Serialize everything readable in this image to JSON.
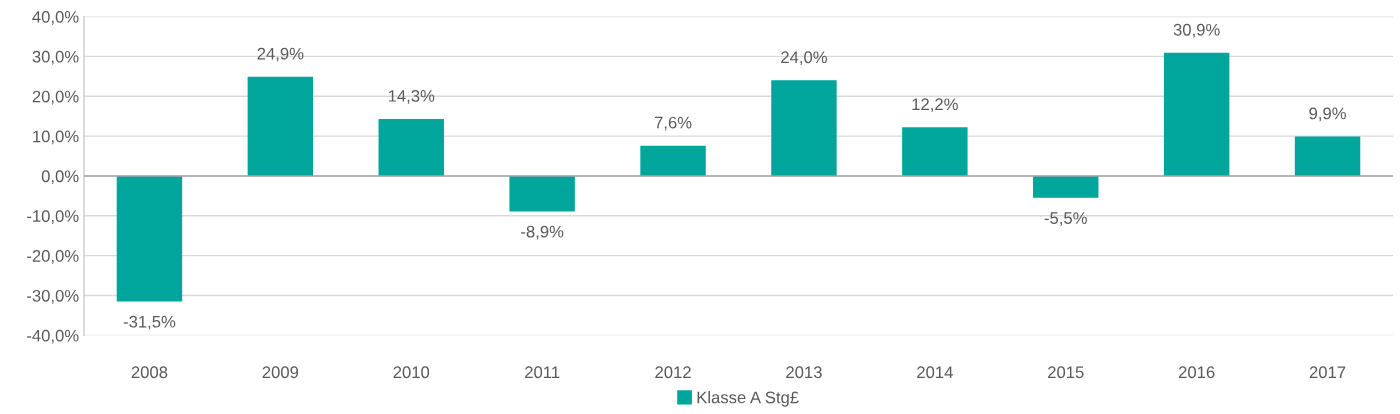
{
  "chart_data": {
    "type": "bar",
    "categories": [
      "2008",
      "2009",
      "2010",
      "2011",
      "2012",
      "2013",
      "2014",
      "2015",
      "2016",
      "2017"
    ],
    "series": [
      {
        "name": "Klasse A Stg£",
        "color": "#00a69c",
        "values": [
          -31.5,
          24.9,
          14.3,
          -8.9,
          7.6,
          24.0,
          12.2,
          -5.5,
          30.9,
          9.9
        ],
        "value_labels": [
          "-31,5%",
          "24,9%",
          "14,3%",
          "-8,9%",
          "7,6%",
          "24,0%",
          "12,2%",
          "-5,5%",
          "30,9%",
          "9,9%"
        ]
      }
    ],
    "ylim": [
      -40,
      40
    ],
    "yticks": [
      {
        "value": -40,
        "label": "-40,0%"
      },
      {
        "value": -30,
        "label": "-30,0%"
      },
      {
        "value": -20,
        "label": "-20,0%"
      },
      {
        "value": -10,
        "label": "-10,0%"
      },
      {
        "value": 0,
        "label": "0,0%"
      },
      {
        "value": 10,
        "label": "10,0%"
      },
      {
        "value": 20,
        "label": "20,0%"
      },
      {
        "value": 30,
        "label": "30,0%"
      },
      {
        "value": 40,
        "label": "40,0%"
      }
    ],
    "grid": "y",
    "legend": "bottom"
  }
}
